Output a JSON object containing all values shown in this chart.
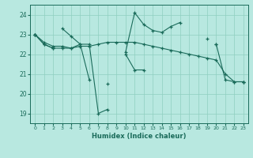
{
  "bg_color": "#b8e8e0",
  "grid_color": "#8fcfbf",
  "line_color": "#1a6b5a",
  "xlabel": "Humidex (Indice chaleur)",
  "ylabel_ticks": [
    19,
    20,
    21,
    22,
    23,
    24
  ],
  "xlim": [
    -0.5,
    23.5
  ],
  "ylim": [
    18.5,
    24.5
  ],
  "xticks": [
    0,
    1,
    2,
    3,
    4,
    5,
    6,
    7,
    8,
    9,
    10,
    11,
    12,
    13,
    14,
    15,
    16,
    17,
    18,
    19,
    20,
    21,
    22,
    23
  ],
  "series": [
    [
      23.0,
      22.6,
      22.4,
      22.4,
      22.3,
      22.5,
      22.5,
      19.0,
      19.2,
      null,
      22.0,
      21.2,
      21.2,
      null,
      null,
      null,
      null,
      null,
      null,
      null,
      22.5,
      20.7,
      20.6,
      20.6
    ],
    [
      23.0,
      null,
      null,
      23.3,
      22.9,
      22.5,
      20.7,
      null,
      20.5,
      null,
      22.1,
      24.1,
      23.5,
      23.2,
      23.1,
      23.4,
      23.6,
      null,
      null,
      22.8,
      null,
      null,
      null,
      null
    ],
    [
      23.0,
      22.5,
      22.3,
      null,
      null,
      null,
      null,
      null,
      null,
      null,
      null,
      null,
      null,
      null,
      null,
      null,
      null,
      null,
      null,
      null,
      22.5,
      null,
      null,
      20.6
    ],
    [
      23.0,
      22.5,
      22.3,
      22.3,
      22.3,
      22.4,
      22.4,
      22.5,
      22.6,
      22.6,
      22.6,
      22.6,
      22.5,
      22.4,
      22.3,
      22.2,
      22.1,
      22.0,
      21.9,
      21.8,
      21.7,
      21.0,
      20.6,
      20.6
    ]
  ]
}
